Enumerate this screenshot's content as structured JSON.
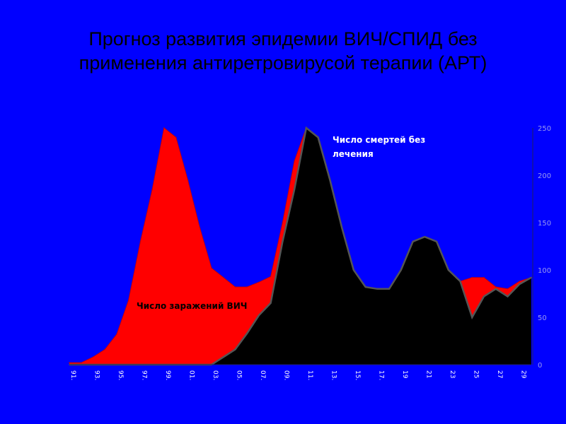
{
  "slide": {
    "title_line1": "Прогноз развития эпидемии ВИЧ/СПИД без",
    "title_line2": "применения антиретровирусой терапии (АРТ)"
  },
  "colors": {
    "background": "#0000FF",
    "infections": "#FF0000",
    "deaths": "#000000"
  },
  "chart_data": {
    "type": "area",
    "x": [
      "91.",
      "92.",
      "93.",
      "94.",
      "95.",
      "96.",
      "97.",
      "98.",
      "99.",
      "00.",
      "01.",
      "02.",
      "03.",
      "04.",
      "05.",
      "06.",
      "07.",
      "08.",
      "09.",
      "10.",
      "11.",
      "12.",
      "13.",
      "14.",
      "15.",
      "16.",
      "17.",
      "18.",
      "19",
      "20",
      "21",
      "22",
      "23",
      "24",
      "25",
      "26",
      "27",
      "28",
      "29",
      "30"
    ],
    "x_tick_labels": [
      "91.",
      "93.",
      "95.",
      "97.",
      "99.",
      "01.",
      "03.",
      "05.",
      "07.",
      "09.",
      "11.",
      "13.",
      "15.",
      "17.",
      "19",
      "21",
      "23",
      "25",
      "27",
      "29"
    ],
    "ylim": [
      0,
      250
    ],
    "y_ticks": [
      0,
      50,
      100,
      150,
      200,
      250
    ],
    "y_tick_labels": [
      "0",
      "50",
      "100",
      "150",
      "200",
      "250"
    ],
    "series": [
      {
        "name": "Число заражений ВИЧ",
        "values": [
          2,
          2,
          8,
          16,
          32,
          68,
          130,
          185,
          250,
          240,
          195,
          145,
          102,
          92,
          82,
          82,
          87,
          93,
          150,
          215,
          250,
          240,
          195,
          145,
          100,
          82,
          80,
          80,
          100,
          130,
          130,
          125,
          100,
          88,
          92,
          92,
          82,
          80,
          88,
          92
        ]
      },
      {
        "name": "Число смертей без лечения",
        "values": [
          0,
          0,
          0,
          0,
          0,
          0,
          0,
          0,
          0,
          0,
          0,
          0,
          0,
          8,
          16,
          33,
          52,
          65,
          130,
          185,
          250,
          240,
          195,
          145,
          100,
          82,
          80,
          80,
          100,
          130,
          135,
          130,
          100,
          88,
          50,
          72,
          80,
          72,
          85,
          92
        ]
      }
    ],
    "annotations": {
      "infections_label": "Число заражений ВИЧ",
      "deaths_label_line1": "Число смертей без",
      "deaths_label_line2": "лечения"
    }
  }
}
